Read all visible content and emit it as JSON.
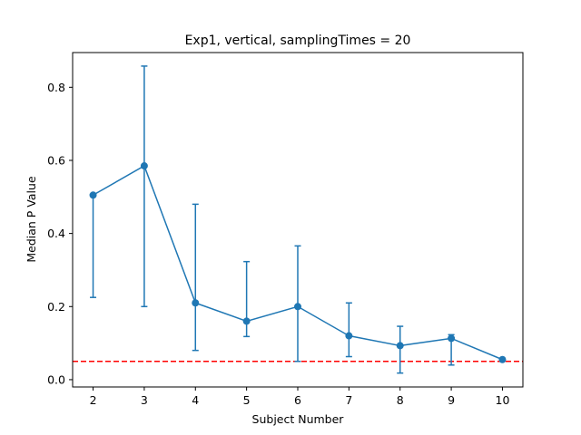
{
  "chart_data": {
    "type": "line",
    "title": "Exp1, vertical, samplingTimes = 20",
    "xlabel": "Subject Number",
    "ylabel": "Median P Value",
    "x": [
      2,
      3,
      4,
      5,
      6,
      7,
      8,
      9,
      10
    ],
    "xlim": [
      1.6,
      10.4
    ],
    "ylim": [
      -0.02,
      0.895
    ],
    "xticks": [
      "2",
      "3",
      "4",
      "5",
      "6",
      "7",
      "8",
      "9",
      "10"
    ],
    "yticks": [
      "0.0",
      "0.2",
      "0.4",
      "0.6",
      "0.8"
    ],
    "ytick_values": [
      0.0,
      0.2,
      0.4,
      0.6,
      0.8
    ],
    "grid": false,
    "series": [
      {
        "values": [
          0.505,
          0.585,
          0.21,
          0.16,
          0.2,
          0.12,
          0.093,
          0.113,
          0.055
        ],
        "err_low": [
          0.225,
          0.2,
          0.08,
          0.118,
          0.05,
          0.063,
          0.018,
          0.04,
          0.055
        ],
        "err_high": [
          0.505,
          0.858,
          0.48,
          0.323,
          0.366,
          0.21,
          0.146,
          0.123,
          0.055
        ],
        "color": "#1f77b4"
      }
    ],
    "reference_line": {
      "y": 0.05,
      "color": "#ff0000",
      "style": "dashed"
    }
  }
}
